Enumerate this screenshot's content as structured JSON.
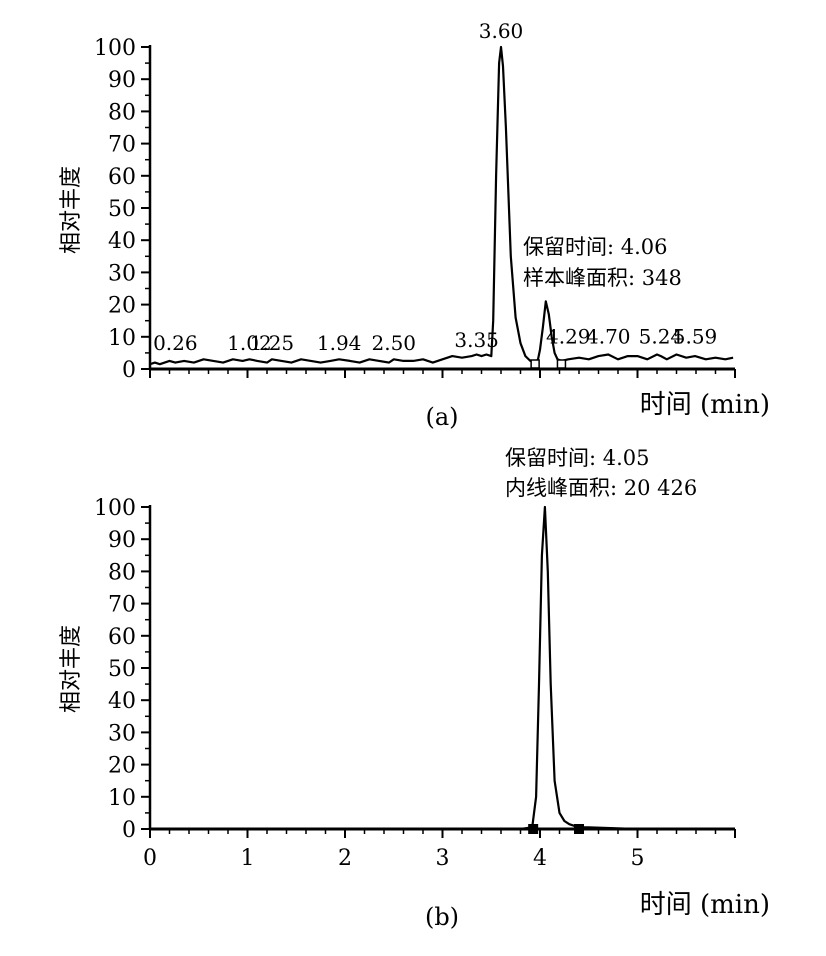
{
  "chart_data": [
    {
      "type": "line",
      "panel_label": "(a)",
      "ylabel": "相对丰度",
      "xlabel": "时间 (min)",
      "xlim": [
        0,
        6.0
      ],
      "ylim": [
        0,
        100
      ],
      "yticks": [
        "0",
        "10",
        "20",
        "30",
        "40",
        "50",
        "60",
        "70",
        "80",
        "90",
        "100"
      ],
      "show_x_tick_labels": false,
      "series": [
        {
          "x": [
            0.0,
            0.05,
            0.1,
            0.2,
            0.26,
            0.35,
            0.45,
            0.55,
            0.65,
            0.75,
            0.85,
            0.95,
            1.02,
            1.1,
            1.2,
            1.25,
            1.35,
            1.45,
            1.55,
            1.65,
            1.75,
            1.85,
            1.94,
            2.05,
            2.15,
            2.25,
            2.35,
            2.45,
            2.5,
            2.6,
            2.7,
            2.8,
            2.9,
            3.0,
            3.1,
            3.2,
            3.3,
            3.35,
            3.4,
            3.45,
            3.5,
            3.52,
            3.55,
            3.58,
            3.6,
            3.62,
            3.65,
            3.7,
            3.75,
            3.8,
            3.85,
            3.9,
            3.95,
            3.98,
            4.0,
            4.03,
            4.06,
            4.09,
            4.12,
            4.15,
            4.18,
            4.22,
            4.29,
            4.4,
            4.5,
            4.6,
            4.7,
            4.8,
            4.9,
            5.0,
            5.1,
            5.2,
            5.24,
            5.3,
            5.4,
            5.5,
            5.59,
            5.7,
            5.8,
            5.9,
            5.98
          ],
          "y": [
            1.5,
            2.0,
            1.5,
            2.5,
            2.0,
            2.5,
            2.0,
            3.0,
            2.5,
            2.0,
            3.0,
            2.5,
            3.0,
            2.5,
            2.0,
            3.0,
            2.5,
            2.0,
            3.0,
            2.5,
            2.0,
            2.5,
            3.0,
            2.5,
            2.0,
            3.0,
            2.5,
            2.0,
            3.0,
            2.5,
            2.5,
            3.0,
            2.0,
            3.0,
            4.0,
            3.5,
            4.0,
            4.5,
            4.0,
            4.5,
            4.0,
            15.0,
            60.0,
            95.0,
            100.0,
            94.0,
            75.0,
            35.0,
            16.0,
            8.0,
            4.0,
            2.5,
            2.0,
            3.0,
            6.0,
            13.0,
            21.0,
            17.0,
            10.0,
            5.0,
            3.0,
            2.5,
            3.0,
            3.5,
            3.0,
            4.0,
            4.5,
            3.0,
            4.0,
            4.0,
            3.0,
            4.5,
            4.0,
            3.0,
            4.5,
            3.5,
            4.0,
            3.0,
            3.5,
            3.0,
            3.5
          ]
        }
      ],
      "peak_labels": [
        {
          "text": "0.26",
          "x": 0.26,
          "y": 4.0
        },
        {
          "text": "1.02",
          "x": 1.02,
          "y": 4.0
        },
        {
          "text": "1.25",
          "x": 1.25,
          "y": 4.0
        },
        {
          "text": "1.94",
          "x": 1.94,
          "y": 4.0
        },
        {
          "text": "2.50",
          "x": 2.5,
          "y": 4.0
        },
        {
          "text": "3.35",
          "x": 3.35,
          "y": 5.0
        },
        {
          "text": "3.60",
          "x": 3.6,
          "y": 101.0
        },
        {
          "text": "4.29",
          "x": 4.29,
          "y": 6.0
        },
        {
          "text": "4.70",
          "x": 4.7,
          "y": 6.0
        },
        {
          "text": "5.24",
          "x": 5.24,
          "y": 6.0
        },
        {
          "text": "5.59",
          "x": 5.59,
          "y": 6.0
        }
      ],
      "annotation": {
        "lines": [
          "保留时间: 4.06",
          "样本峰面积: 348"
        ],
        "x": 4.06
      },
      "integration_markers": [
        3.95,
        4.22
      ]
    },
    {
      "type": "line",
      "panel_label": "(b)",
      "ylabel": "相对丰度",
      "xlabel": "时间 (min)",
      "xlim": [
        0,
        6.0
      ],
      "ylim": [
        0,
        100
      ],
      "yticks": [
        "0",
        "10",
        "20",
        "30",
        "40",
        "50",
        "60",
        "70",
        "80",
        "90",
        "100"
      ],
      "xticks": [
        "0",
        "1",
        "2",
        "3",
        "4",
        "5"
      ],
      "show_x_tick_labels": true,
      "series": [
        {
          "x": [
            0.0,
            1.0,
            2.0,
            3.0,
            3.8,
            3.92,
            3.96,
            3.99,
            4.02,
            4.05,
            4.08,
            4.11,
            4.15,
            4.2,
            4.25,
            4.3,
            4.4,
            4.5,
            5.0,
            5.98
          ],
          "y": [
            0.0,
            0.0,
            0.0,
            0.0,
            0.0,
            0.5,
            10.0,
            45.0,
            85.0,
            100.0,
            80.0,
            45.0,
            15.0,
            5.0,
            2.5,
            1.5,
            0.5,
            0.5,
            0.0,
            0.0
          ]
        }
      ],
      "annotation": {
        "lines": [
          "保留时间: 4.05",
          "内线峰面积: 20 426"
        ],
        "x": 4.05
      },
      "integration_markers": [
        3.93,
        4.4
      ]
    }
  ]
}
